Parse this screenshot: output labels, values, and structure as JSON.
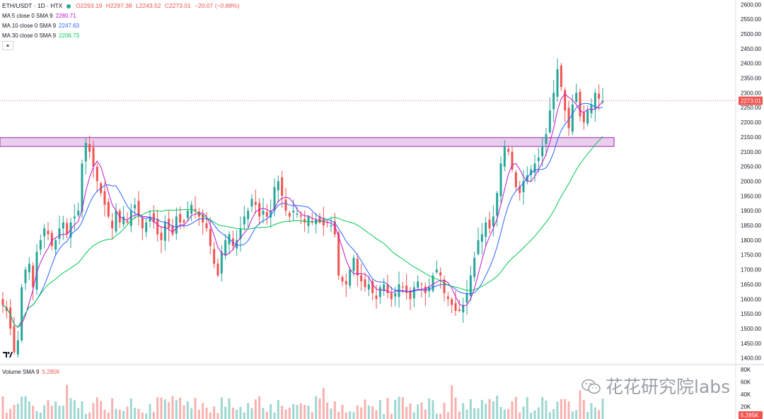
{
  "header": {
    "symbol": "ETH/USDT · 1D · HTX",
    "open": "O2293.19",
    "high": "H2297.38",
    "low": "L2243.52",
    "close": "C2273.01",
    "change": "−20.07 (−0.88%)"
  },
  "indicators": [
    {
      "label": "MA 5 close 0 SMA 9",
      "value": "2280.71",
      "color": "#c415ce"
    },
    {
      "label": "MA 10 close 0 SMA 9",
      "value": "2247.63",
      "color": "#2962ff"
    },
    {
      "label": "MA 30 close 0 SMA 9",
      "value": "2206.73",
      "color": "#00c853"
    }
  ],
  "volume_legend": {
    "label": "Volume SMA 9",
    "value": "5.285K"
  },
  "watermark": "花花研究院labs",
  "last_price_label": "2273.01",
  "last_volume_label": "5.285K",
  "chart_data": {
    "type": "candlestick",
    "timeframe": "1D",
    "y_ticks": [
      1400,
      1450,
      1500,
      1550,
      1600,
      1650,
      1700,
      1750,
      1800,
      1850,
      1900,
      1950,
      2000,
      2050,
      2100,
      2150,
      2200,
      2250,
      2300,
      2350,
      2400,
      2450,
      2500,
      2550,
      2600
    ],
    "y_tick_labels": [
      "1400.00",
      "1450.00",
      "1500.00",
      "1550.00",
      "1600.00",
      "1650.00",
      "1700.00",
      "1750.00",
      "1800.00",
      "1850.00",
      "1900.00",
      "1950.00",
      "2000.00",
      "2050.00",
      "2100.00",
      "2150.00",
      "2200.00",
      "2250.00",
      "2300.00",
      "2350.00",
      "2400.00",
      "2450.00",
      "2500.00",
      "2550.00",
      "2600.00"
    ],
    "ylim": [
      1380,
      2615
    ],
    "volume_ticks": [
      20000,
      40000,
      60000,
      80000
    ],
    "volume_tick_labels": [
      "20K",
      "40K",
      "60K",
      "80K"
    ],
    "volume_ylim": [
      0,
      82000
    ],
    "resistance_zone": [
      2118,
      2148
    ],
    "last_price": 2273.01,
    "colors": {
      "up": "#26a69a",
      "down": "#ef5350",
      "zone_fill": "#e1bee7",
      "zone_border": "#9c27b0",
      "ma5": "#c415ce",
      "ma10": "#2962ff",
      "ma30": "#00c853"
    },
    "close_path": [
      1580,
      1560,
      1500,
      1420,
      1460,
      1640,
      1700,
      1720,
      1640,
      1760,
      1800,
      1840,
      1820,
      1780,
      1800,
      1840,
      1860,
      1820,
      1860,
      1880,
      1900,
      2060,
      2130,
      2100,
      2050,
      2000,
      1960,
      1920,
      1880,
      1840,
      1900,
      1860,
      1880,
      1860,
      1900,
      1920,
      1880,
      1840,
      1860,
      1880,
      1860,
      1820,
      1800,
      1860,
      1840,
      1820,
      1880,
      1860,
      1860,
      1900,
      1920,
      1900,
      1880,
      1860,
      1840,
      1780,
      1720,
      1680,
      1760,
      1800,
      1820,
      1780,
      1800,
      1840,
      1880,
      1900,
      1940,
      1920,
      1880,
      1900,
      1880,
      1900,
      1980,
      2000,
      1950,
      1900,
      1880,
      1900,
      1890,
      1880,
      1860,
      1880,
      1860,
      1870,
      1860,
      1850,
      1860,
      1850,
      1820,
      1680,
      1660,
      1650,
      1700,
      1740,
      1680,
      1660,
      1640,
      1650,
      1620,
      1600,
      1640,
      1650,
      1620,
      1600,
      1620,
      1650,
      1640,
      1620,
      1600,
      1640,
      1660,
      1650,
      1620,
      1640,
      1680,
      1700,
      1680,
      1620,
      1600,
      1580,
      1560,
      1560,
      1580,
      1620,
      1680,
      1740,
      1800,
      1820,
      1860,
      1840,
      1880,
      1960,
      2060,
      2120,
      2100,
      2040,
      1980,
      1960,
      2000,
      2020,
      2040,
      2060,
      2080,
      2120,
      2160,
      2240,
      2300,
      2380,
      2320,
      2240,
      2180,
      2260,
      2300,
      2220,
      2200,
      2240,
      2260,
      2300,
      2280,
      2273
    ]
  }
}
